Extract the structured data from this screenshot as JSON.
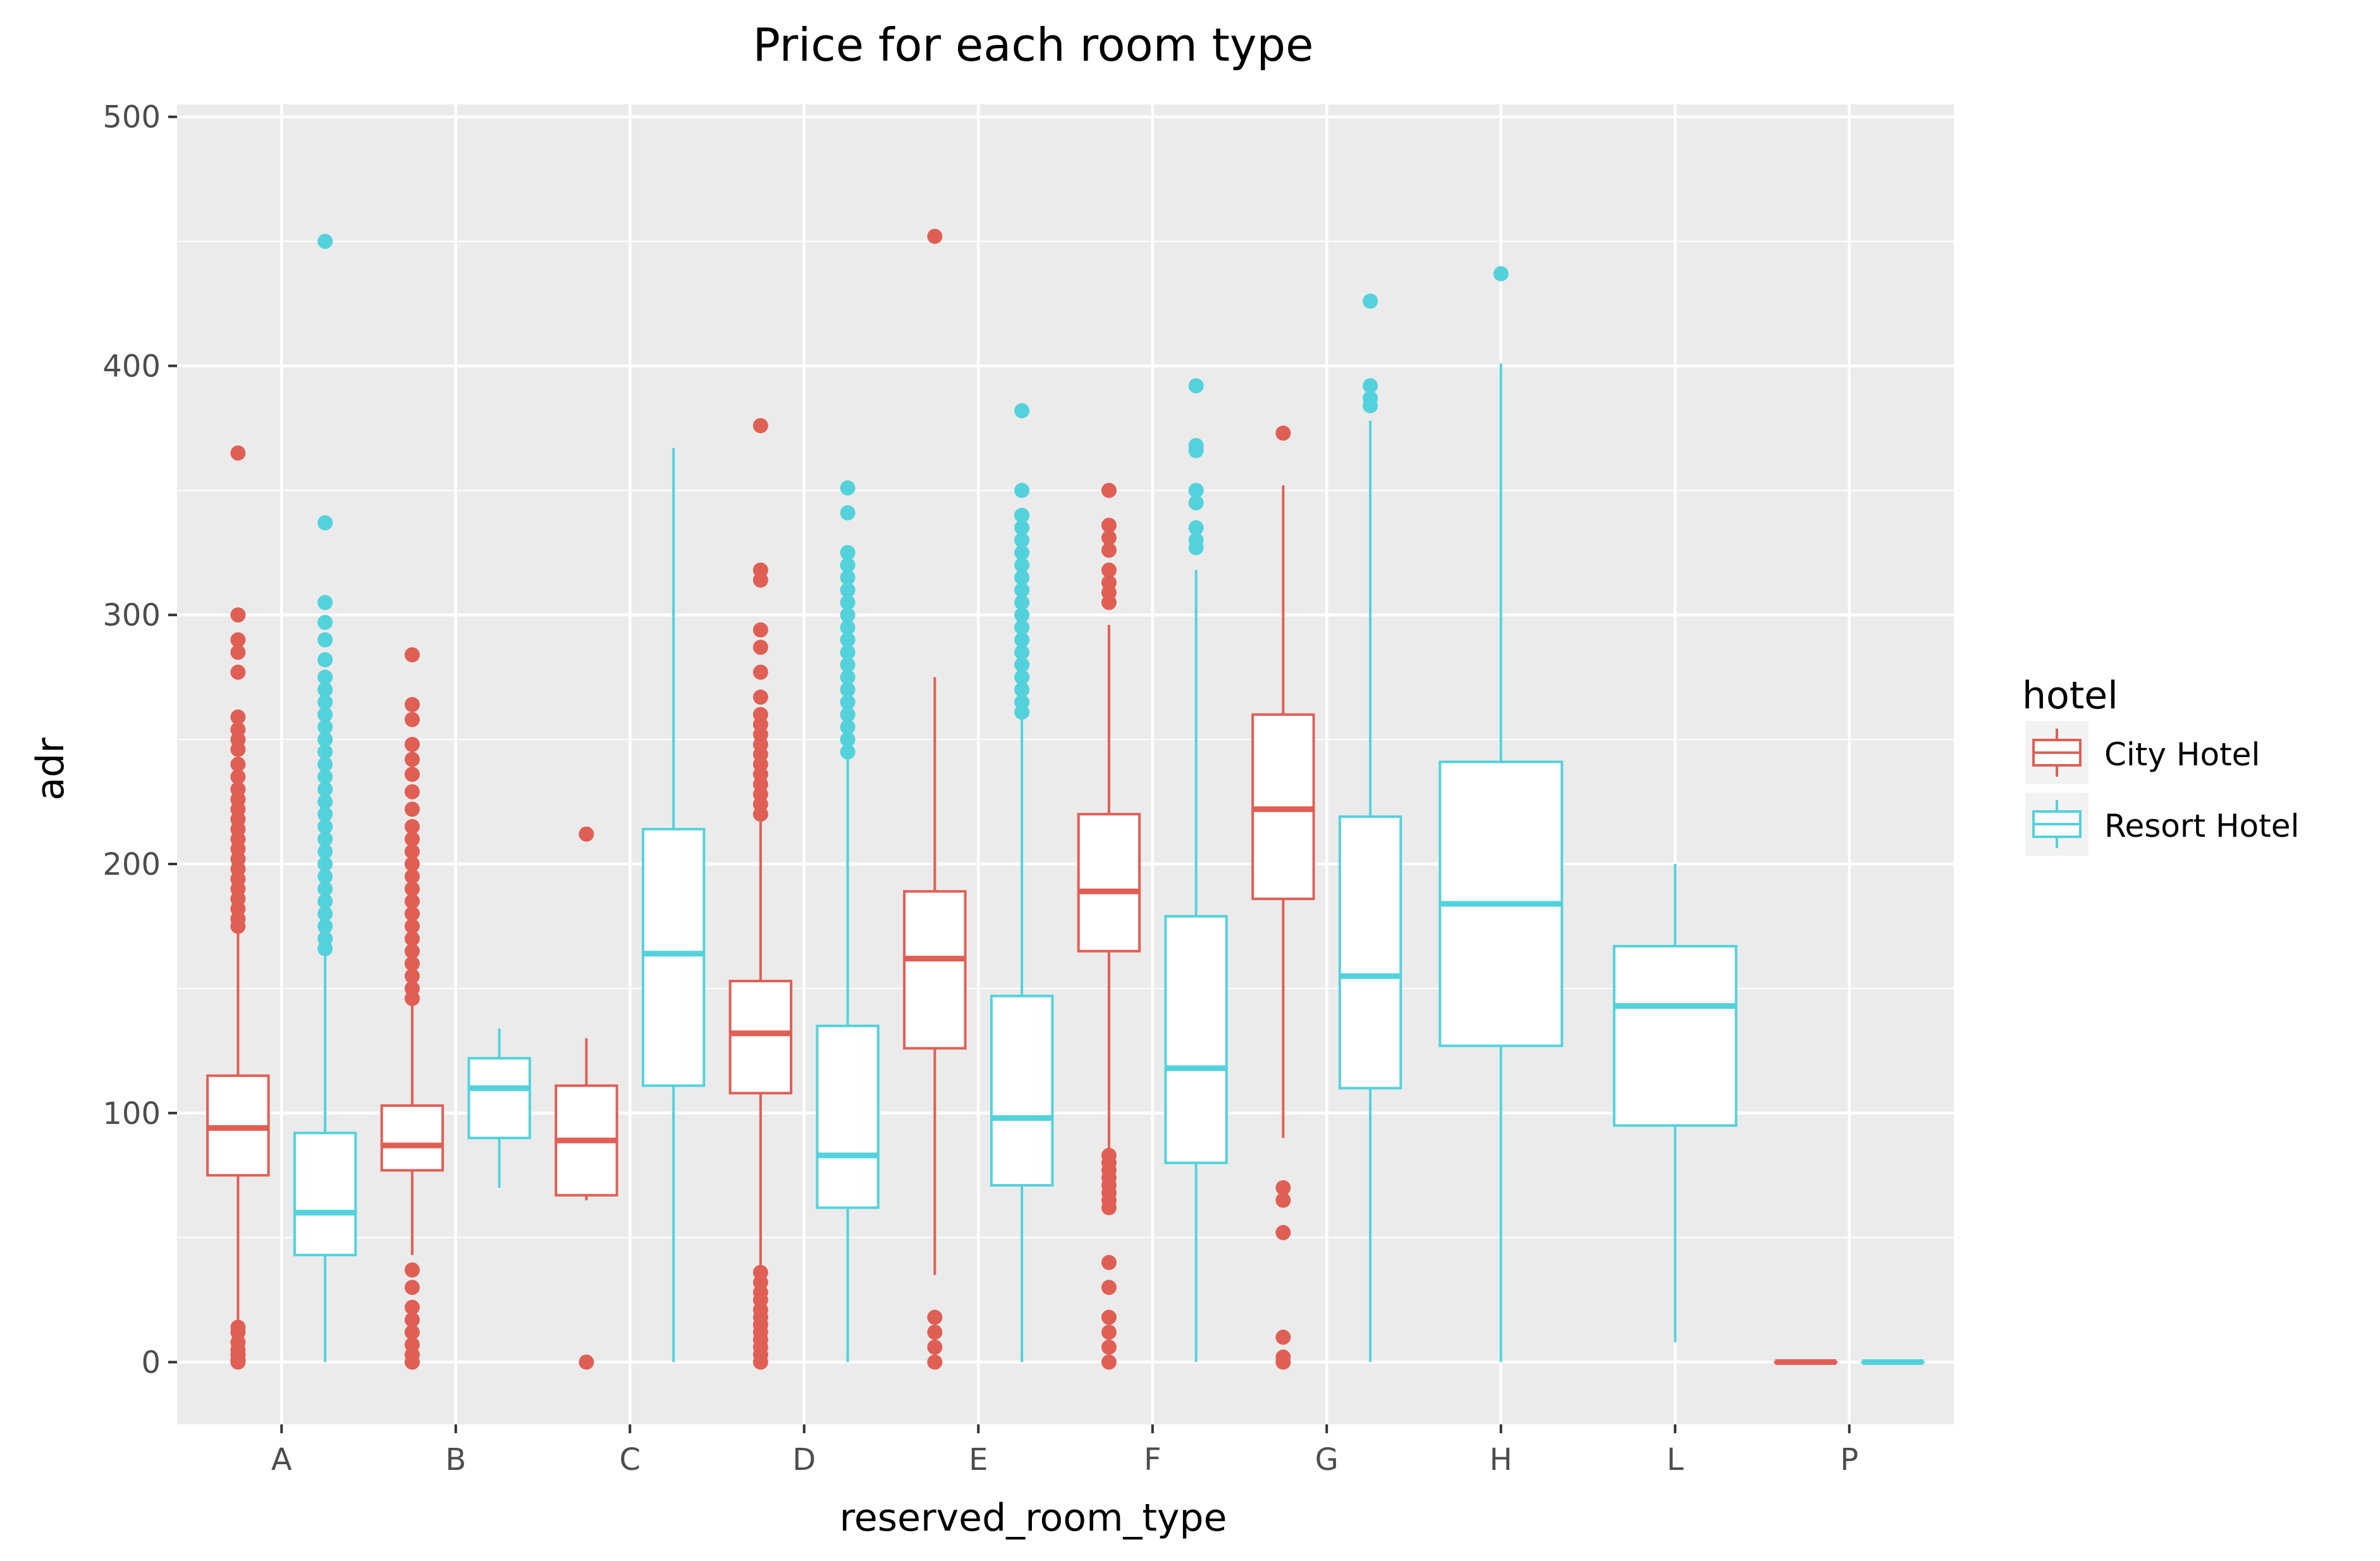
{
  "chart_data": {
    "type": "boxplot",
    "title": "Price for each room type",
    "xlabel": "reserved_room_type",
    "ylabel": "adr",
    "categories": [
      "A",
      "B",
      "C",
      "D",
      "E",
      "F",
      "G",
      "H",
      "L",
      "P"
    ],
    "ylim": [
      -25,
      505
    ],
    "yticks": [
      0,
      100,
      200,
      300,
      400,
      500
    ],
    "grid": true,
    "legend": {
      "title": "hotel",
      "position": "right",
      "entries": [
        "City Hotel",
        "Resort Hotel"
      ]
    },
    "colors": {
      "City Hotel": "#e05f55",
      "Resort Hotel": "#53d2dc",
      "panel": "#ebebeb",
      "grid": "#ffffff"
    },
    "series": [
      {
        "name": "City Hotel",
        "boxes": [
          {
            "category": "A",
            "whisker_low": 1,
            "q1": 75,
            "median": 94,
            "q3": 115,
            "whisker_high": 174,
            "outliers": [
              0,
              1,
              3,
              5,
              8,
              12,
              14,
              175,
              178,
              182,
              186,
              190,
              194,
              198,
              202,
              206,
              210,
              214,
              218,
              222,
              226,
              230,
              235,
              240,
              246,
              250,
              254,
              259,
              277,
              285,
              290,
              300,
              365
            ]
          },
          {
            "category": "B",
            "whisker_low": 43,
            "q1": 77,
            "median": 87,
            "q3": 103,
            "whisker_high": 143,
            "outliers": [
              0,
              3,
              7,
              12,
              17,
              22,
              30,
              37,
              146,
              150,
              155,
              160,
              165,
              170,
              175,
              180,
              185,
              190,
              195,
              200,
              205,
              210,
              215,
              222,
              229,
              236,
              242,
              248,
              258,
              264,
              284
            ]
          },
          {
            "category": "C",
            "whisker_low": 65,
            "q1": 67,
            "median": 89,
            "q3": 111,
            "whisker_high": 130,
            "outliers": [
              0,
              212
            ]
          },
          {
            "category": "D",
            "whisker_low": 38,
            "q1": 108,
            "median": 132,
            "q3": 153,
            "whisker_high": 218,
            "outliers": [
              0,
              3,
              6,
              9,
              12,
              15,
              18,
              21,
              25,
              28,
              32,
              36,
              220,
              224,
              228,
              232,
              236,
              240,
              244,
              248,
              252,
              256,
              260,
              267,
              277,
              287,
              294,
              314,
              318,
              376
            ]
          },
          {
            "category": "E",
            "whisker_low": 35,
            "q1": 126,
            "median": 162,
            "q3": 189,
            "whisker_high": 275,
            "outliers": [
              0,
              6,
              12,
              18,
              452
            ]
          },
          {
            "category": "F",
            "whisker_low": 85,
            "q1": 165,
            "median": 189,
            "q3": 220,
            "whisker_high": 296,
            "outliers": [
              0,
              6,
              12,
              18,
              30,
              40,
              62,
              65,
              68,
              71,
              74,
              77,
              80,
              83,
              305,
              309,
              313,
              318,
              326,
              331,
              336,
              350
            ]
          },
          {
            "category": "G",
            "whisker_low": 90,
            "q1": 186,
            "median": 222,
            "q3": 260,
            "whisker_high": 352,
            "outliers": [
              0,
              2,
              10,
              52,
              65,
              70,
              373
            ]
          },
          {
            "category": "P",
            "whisker_low": 0,
            "q1": 0,
            "median": 0,
            "q3": 0,
            "whisker_high": 0,
            "outliers": []
          }
        ]
      },
      {
        "name": "Resort Hotel",
        "boxes": [
          {
            "category": "A",
            "whisker_low": 0,
            "q1": 43,
            "median": 60,
            "q3": 92,
            "whisker_high": 163,
            "outliers": [
              166,
              170,
              175,
              180,
              185,
              190,
              195,
              200,
              205,
              210,
              215,
              220,
              225,
              230,
              235,
              240,
              245,
              250,
              255,
              260,
              265,
              270,
              275,
              282,
              290,
              297,
              305,
              337,
              450
            ]
          },
          {
            "category": "B",
            "whisker_low": 70,
            "q1": 90,
            "median": 110,
            "q3": 122,
            "whisker_high": 134,
            "outliers": []
          },
          {
            "category": "C",
            "whisker_low": 0,
            "q1": 111,
            "median": 164,
            "q3": 214,
            "whisker_high": 367,
            "outliers": []
          },
          {
            "category": "D",
            "whisker_low": 0,
            "q1": 62,
            "median": 83,
            "q3": 135,
            "whisker_high": 243,
            "outliers": [
              245,
              250,
              255,
              260,
              265,
              270,
              275,
              280,
              285,
              290,
              295,
              300,
              305,
              310,
              315,
              320,
              325,
              341,
              351
            ]
          },
          {
            "category": "E",
            "whisker_low": 0,
            "q1": 71,
            "median": 98,
            "q3": 147,
            "whisker_high": 259,
            "outliers": [
              261,
              265,
              270,
              275,
              280,
              285,
              290,
              295,
              300,
              305,
              310,
              315,
              320,
              325,
              330,
              335,
              340,
              350,
              382
            ]
          },
          {
            "category": "F",
            "whisker_low": 0,
            "q1": 80,
            "median": 118,
            "q3": 179,
            "whisker_high": 318,
            "outliers": [
              327,
              330,
              335,
              345,
              350,
              366,
              368,
              392
            ]
          },
          {
            "category": "G",
            "whisker_low": 0,
            "q1": 110,
            "median": 155,
            "q3": 219,
            "whisker_high": 378,
            "outliers": [
              384,
              387,
              392,
              426
            ]
          },
          {
            "category": "H",
            "whisker_low": 0,
            "q1": 127,
            "median": 184,
            "q3": 241,
            "whisker_high": 401,
            "outliers": [
              437
            ]
          },
          {
            "category": "L",
            "whisker_low": 8,
            "q1": 95,
            "median": 143,
            "q3": 167,
            "whisker_high": 200,
            "outliers": []
          },
          {
            "category": "P",
            "whisker_low": 0,
            "q1": 0,
            "median": 0,
            "q3": 0,
            "whisker_high": 0,
            "outliers": []
          }
        ]
      }
    ]
  }
}
